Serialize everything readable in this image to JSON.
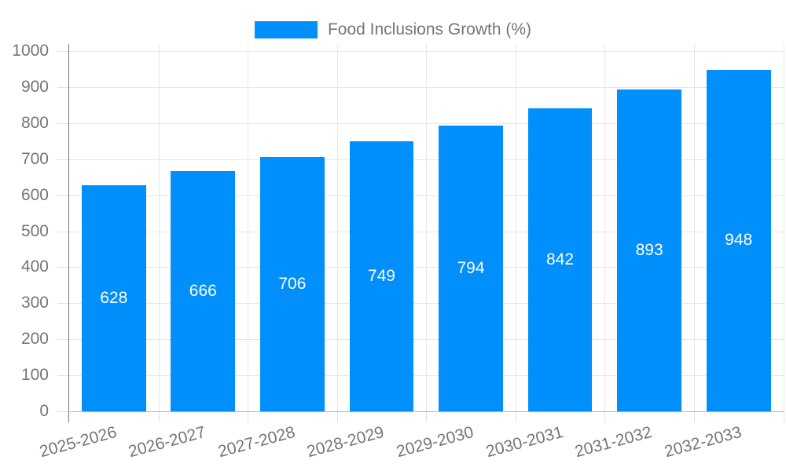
{
  "chart_data": {
    "type": "bar",
    "title": "Food Inclusions Growth (%)",
    "categories": [
      "2025-2026",
      "2026-2027",
      "2027-2028",
      "2028-2029",
      "2029-2030",
      "2030-2031",
      "2031-2032",
      "2032-2033"
    ],
    "values": [
      628,
      666,
      706,
      749,
      794,
      842,
      893,
      948
    ],
    "xlabel": "",
    "ylabel": "",
    "ylim": [
      0,
      1000
    ],
    "ytick_step": 100,
    "grid": true,
    "legend_position": "top",
    "legend_marker": "rect",
    "value_labels": "inside-center",
    "colors": {
      "bar": "#008FFB",
      "value_label": "#ffffff",
      "gridline": "#e7e7e7",
      "tick": "#e0e0e0",
      "y_axis_line": "#787878",
      "x_axis_line": "#b3b3b3",
      "label_text": "#757575",
      "background": "#ffffff"
    }
  }
}
